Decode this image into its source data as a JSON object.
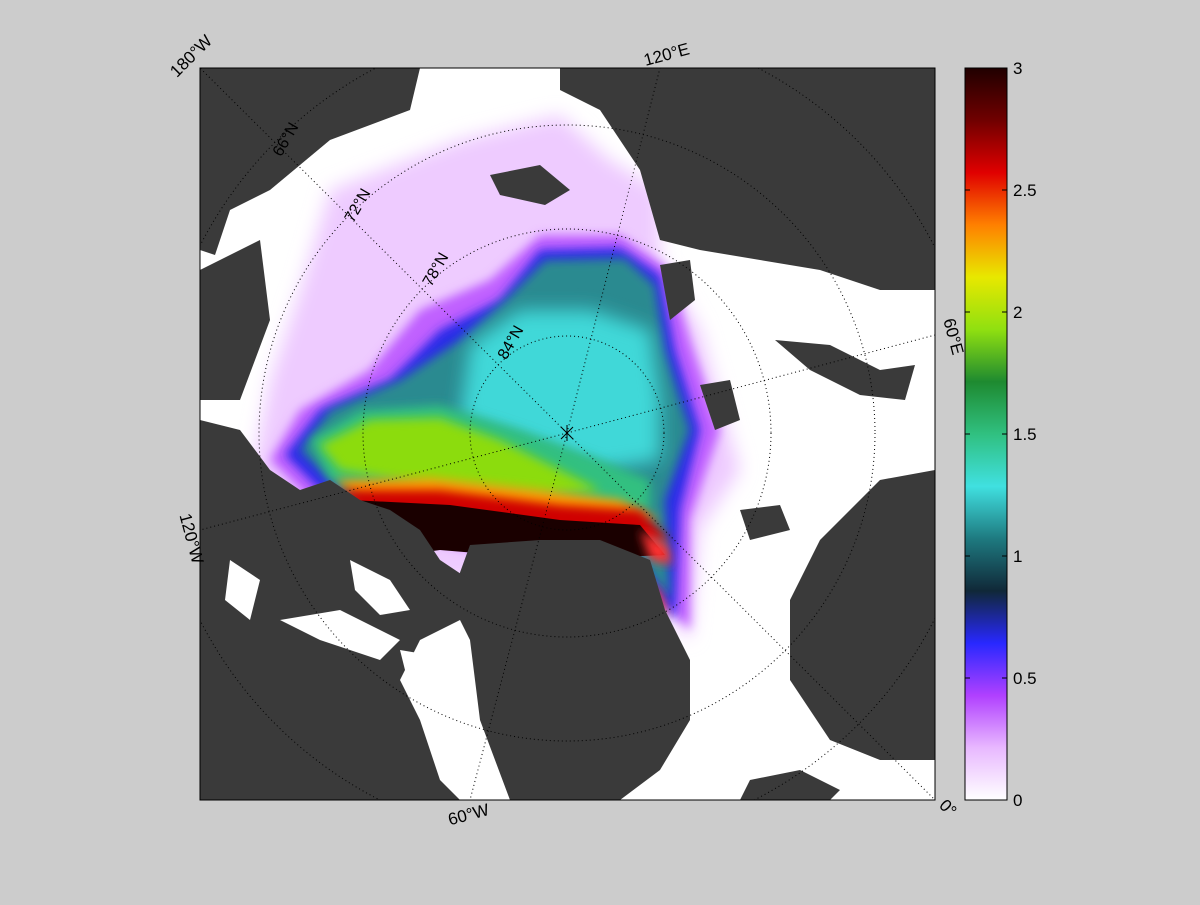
{
  "map": {
    "lon_labels": [
      "180°W",
      "120°E",
      "60°E",
      "0°",
      "60°W",
      "120°W"
    ],
    "lat_labels": [
      "66°N",
      "72°N",
      "78°N",
      "84°N"
    ]
  },
  "colorbar": {
    "lim": [
      0,
      3
    ],
    "ticks": [
      0,
      0.5,
      1,
      1.5,
      2,
      2.5,
      3
    ],
    "colors": [
      "#ffffff",
      "#e8b8ff",
      "#b040ff",
      "#2828ff",
      "#102838",
      "#1e7a80",
      "#40e0e0",
      "#30c080",
      "#1e8a30",
      "#90e010",
      "#e8e800",
      "#ff8000",
      "#e00000",
      "#700000",
      "#200000"
    ]
  }
}
